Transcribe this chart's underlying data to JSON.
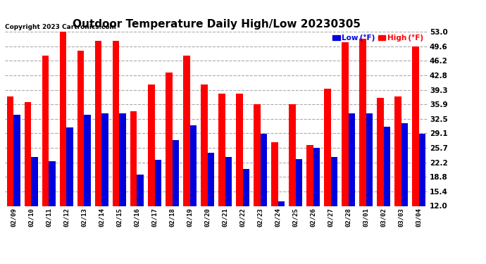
{
  "title": "Outdoor Temperature Daily High/Low 20230305",
  "copyright": "Copyright 2023 Cartronics.com",
  "legend_low": "Low",
  "legend_low_unit": " (°F)",
  "legend_high": "High",
  "legend_high_unit": " (°F)",
  "dates": [
    "02/09",
    "02/10",
    "02/11",
    "02/12",
    "02/13",
    "02/14",
    "02/15",
    "02/16",
    "02/17",
    "02/18",
    "02/19",
    "02/20",
    "02/21",
    "02/22",
    "02/23",
    "02/24",
    "02/25",
    "02/26",
    "02/27",
    "02/28",
    "03/01",
    "03/02",
    "03/03",
    "03/04"
  ],
  "high": [
    37.8,
    36.5,
    47.3,
    53.6,
    48.6,
    50.9,
    50.9,
    34.2,
    40.5,
    43.4,
    47.3,
    40.5,
    38.5,
    38.5,
    36.0,
    27.0,
    36.0,
    26.4,
    39.6,
    50.5,
    51.3,
    37.4,
    37.8,
    49.6
  ],
  "low": [
    33.4,
    23.5,
    22.6,
    30.4,
    33.4,
    33.8,
    33.8,
    19.4,
    22.8,
    27.5,
    31.0,
    24.5,
    23.5,
    20.7,
    29.0,
    13.0,
    23.0,
    25.7,
    23.5,
    33.8,
    33.8,
    30.7,
    31.5,
    28.9
  ],
  "ymin": 12.0,
  "ymax": 53.0,
  "yticks": [
    12.0,
    15.4,
    18.8,
    22.2,
    25.7,
    29.1,
    32.5,
    35.9,
    39.3,
    42.8,
    46.2,
    49.6,
    53.0
  ],
  "high_color": "#ff0000",
  "low_color": "#0000dd",
  "bg_color": "#ffffff",
  "grid_color": "#aaaaaa",
  "title_fontsize": 11,
  "bar_width": 0.38
}
